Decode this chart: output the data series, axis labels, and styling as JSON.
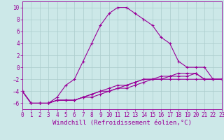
{
  "xlabel": "Windchill (Refroidissement éolien,°C)",
  "background_color": "#cce8e8",
  "grid_color": "#aacccc",
  "line_color": "#990099",
  "xlim": [
    0,
    23
  ],
  "ylim": [
    -7,
    11
  ],
  "xticks": [
    0,
    1,
    2,
    3,
    4,
    5,
    6,
    7,
    8,
    9,
    10,
    11,
    12,
    13,
    14,
    15,
    16,
    17,
    18,
    19,
    20,
    21,
    22,
    23
  ],
  "yticks": [
    -6,
    -4,
    -2,
    0,
    2,
    4,
    6,
    8,
    10
  ],
  "curve1_x": [
    0,
    1,
    2,
    3,
    4,
    5,
    6,
    7,
    8,
    9,
    10,
    11,
    12,
    13,
    14,
    15,
    16,
    17,
    18,
    19,
    20,
    21,
    22,
    23
  ],
  "curve1_y": [
    -4,
    -6,
    -6,
    -6,
    -5,
    -3,
    -2,
    1,
    4,
    7,
    9,
    10,
    10,
    9,
    8,
    7,
    5,
    4,
    1,
    0,
    0,
    0,
    -2,
    -2
  ],
  "curve2_x": [
    0,
    1,
    2,
    3,
    4,
    5,
    6,
    7,
    8,
    9,
    10,
    11,
    12,
    13,
    14,
    15,
    16,
    17,
    18,
    19,
    20,
    21,
    22,
    23
  ],
  "curve2_y": [
    -4,
    -6,
    -6,
    -6,
    -5.5,
    -5.5,
    -5.5,
    -5,
    -4.5,
    -4,
    -3.5,
    -3,
    -3,
    -2.5,
    -2,
    -2,
    -1.5,
    -1.5,
    -1,
    -1,
    -1,
    -2,
    -2,
    -2
  ],
  "curve3_x": [
    0,
    1,
    2,
    3,
    4,
    5,
    6,
    7,
    8,
    9,
    10,
    11,
    12,
    13,
    14,
    15,
    16,
    17,
    18,
    19,
    20,
    21,
    22,
    23
  ],
  "curve3_y": [
    -4,
    -6,
    -6,
    -6,
    -5.5,
    -5.5,
    -5.5,
    -5,
    -4.5,
    -4,
    -4,
    -3.5,
    -3,
    -2.5,
    -2,
    -2,
    -2,
    -1.5,
    -1.5,
    -1.5,
    -1,
    -2,
    -2,
    -2
  ],
  "curve4_x": [
    0,
    1,
    2,
    3,
    4,
    5,
    6,
    7,
    8,
    9,
    10,
    11,
    12,
    13,
    14,
    15,
    16,
    17,
    18,
    19,
    20,
    21,
    22,
    23
  ],
  "curve4_y": [
    -4,
    -6,
    -6,
    -6,
    -5.5,
    -5.5,
    -5.5,
    -5,
    -5,
    -4.5,
    -4,
    -3.5,
    -3.5,
    -3,
    -2.5,
    -2,
    -2,
    -2,
    -2,
    -2,
    -2,
    -2,
    -2,
    -2
  ],
  "tick_fontsize": 5.5,
  "xlabel_fontsize": 6.5
}
